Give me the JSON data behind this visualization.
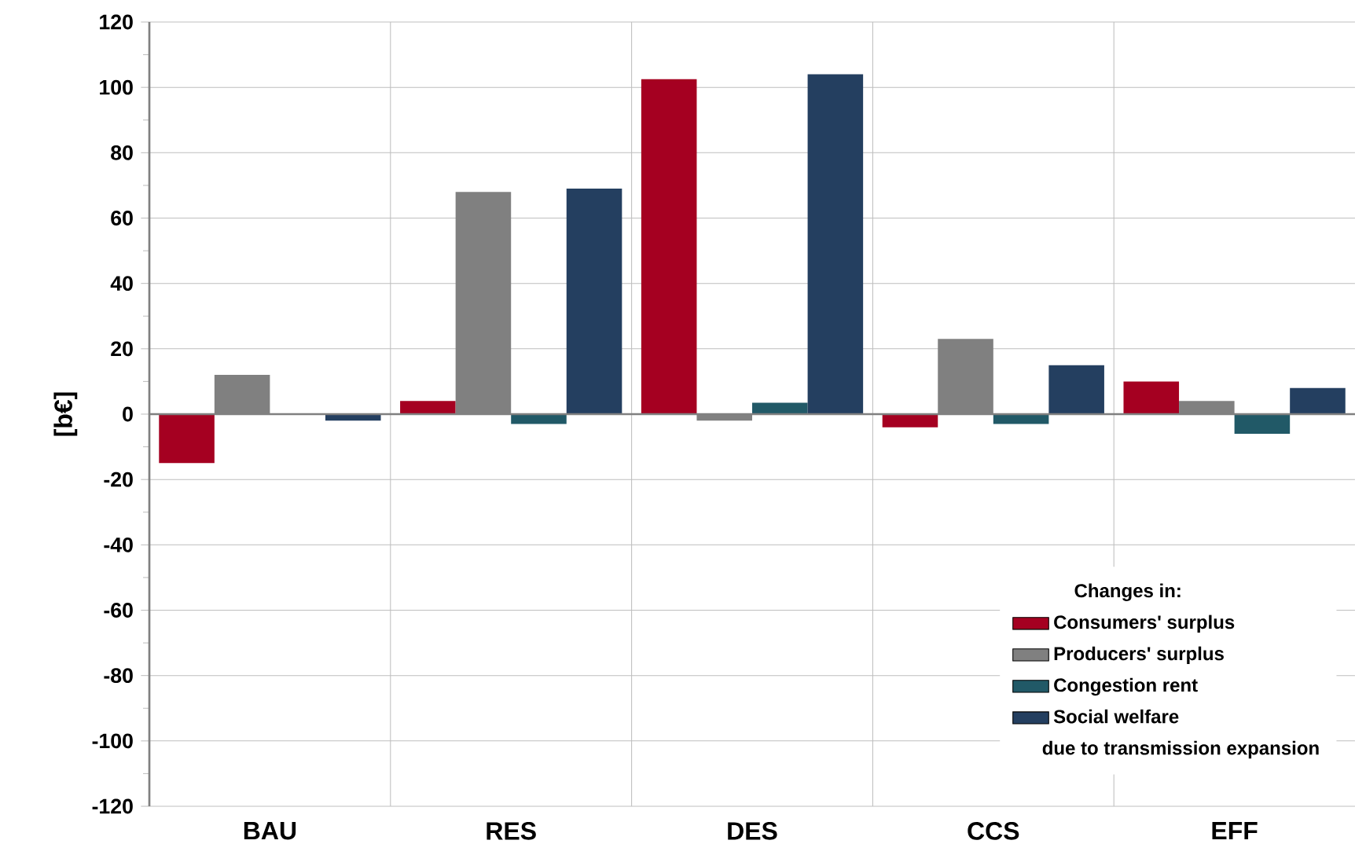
{
  "chart_data": {
    "type": "bar",
    "ylabel": "[b€]",
    "legend_title": "Changes in:",
    "categories": [
      "BAU",
      "RES",
      "DES",
      "CCS",
      "EFF"
    ],
    "series": [
      {
        "name": "Consumers' surplus",
        "color": "#a50021",
        "values": [
          -15,
          4,
          102.5,
          -4,
          10
        ]
      },
      {
        "name": "Producers' surplus",
        "color": "#808080",
        "values": [
          12,
          68,
          -2,
          23,
          4
        ]
      },
      {
        "name": "Congestion rent",
        "color": "#215967",
        "values": [
          0,
          -3,
          3.5,
          -3,
          -6
        ]
      },
      {
        "name": "Social welfare",
        "color": "#243f60",
        "values": [
          -2,
          69,
          104,
          15,
          8
        ]
      }
    ],
    "ylim": [
      -120,
      120
    ],
    "yticks": [
      -120,
      -100,
      -80,
      -60,
      -40,
      -20,
      0,
      20,
      40,
      60,
      80,
      100,
      120
    ],
    "grid": true,
    "legend": "bottom right",
    "annotations": [
      "due to transmission expansion"
    ]
  }
}
